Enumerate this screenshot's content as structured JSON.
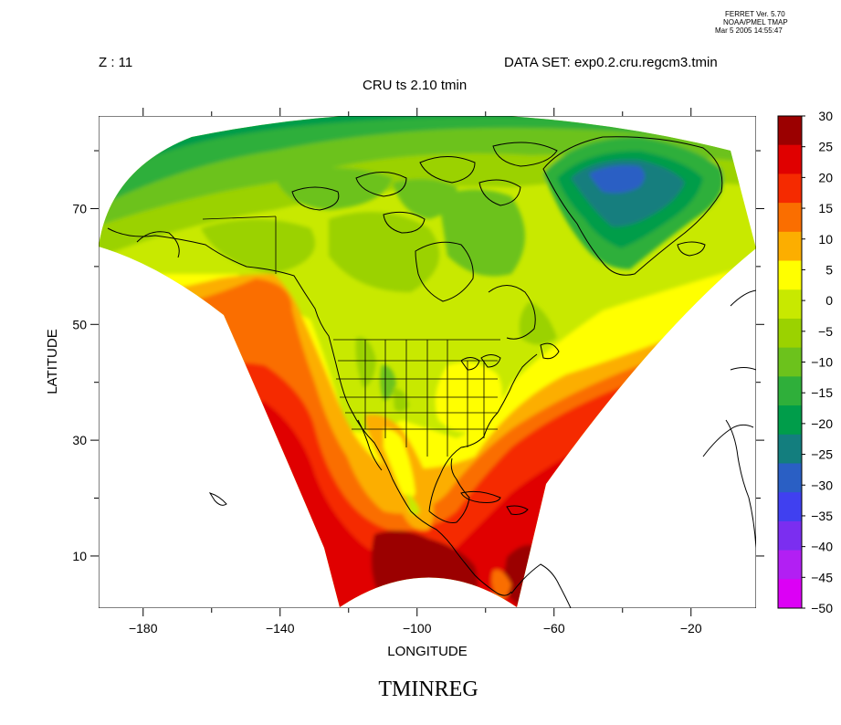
{
  "header": {
    "ferret_stamp": [
      "FERRET Ver. 5.70",
      "NOAA/PMEL TMAP",
      "Mar  5 2005 14:55:47"
    ],
    "z_label": "Z : 11",
    "dataset_label": "DATA SET: exp0.2.cru.regcm3.tmin",
    "title": "CRU  ts  2.10  tmin"
  },
  "footer": {
    "variable_name": "TMINREG"
  },
  "axes": {
    "xlabel": "LONGITUDE",
    "ylabel": "LATITUDE",
    "xlim": [
      -193,
      -1
    ],
    "ylim": [
      1,
      86
    ],
    "x_ticks": [
      {
        "value": -180,
        "label": "−180"
      },
      {
        "value": -140,
        "label": "−140"
      },
      {
        "value": -100,
        "label": "−100"
      },
      {
        "value": -60,
        "label": "−60"
      },
      {
        "value": -20,
        "label": "−20"
      }
    ],
    "x_minor": [
      -160,
      -120,
      -80,
      -40
    ],
    "y_ticks": [
      {
        "value": 70,
        "label": "70"
      },
      {
        "value": 50,
        "label": "50"
      },
      {
        "value": 30,
        "label": "30"
      },
      {
        "value": 10,
        "label": "10"
      }
    ],
    "y_minor": [
      80,
      60,
      40,
      20
    ]
  },
  "chart_data": {
    "type": "heatmap",
    "title": "CRU  ts  2.10  tmin",
    "xlabel": "LONGITUDE",
    "ylabel": "LATITUDE",
    "colorbar": {
      "levels": [
        30,
        25,
        20,
        15,
        10,
        5,
        0,
        -5,
        -10,
        -15,
        -20,
        -25,
        -30,
        -35,
        -40,
        -45,
        -50
      ],
      "labels": [
        "30",
        "25",
        "20",
        "15",
        "10",
        "5",
        "0",
        "−5",
        "−10",
        "−15",
        "−20",
        "−25",
        "−30",
        "−35",
        "−40",
        "−45",
        "−50"
      ],
      "colors": [
        "#9b0000",
        "#e00000",
        "#f52a00",
        "#fa6e00",
        "#fcae00",
        "#ffff00",
        "#c8e900",
        "#9bd200",
        "#6cc21c",
        "#2faf3a",
        "#009d4a",
        "#137e7e",
        "#2a5fc4",
        "#4040f0",
        "#7b2ef0",
        "#b21ff3",
        "#dc00f5"
      ]
    }
  },
  "colors": {
    "ocean_bg": "#ffffff",
    "coast": "#000000"
  }
}
